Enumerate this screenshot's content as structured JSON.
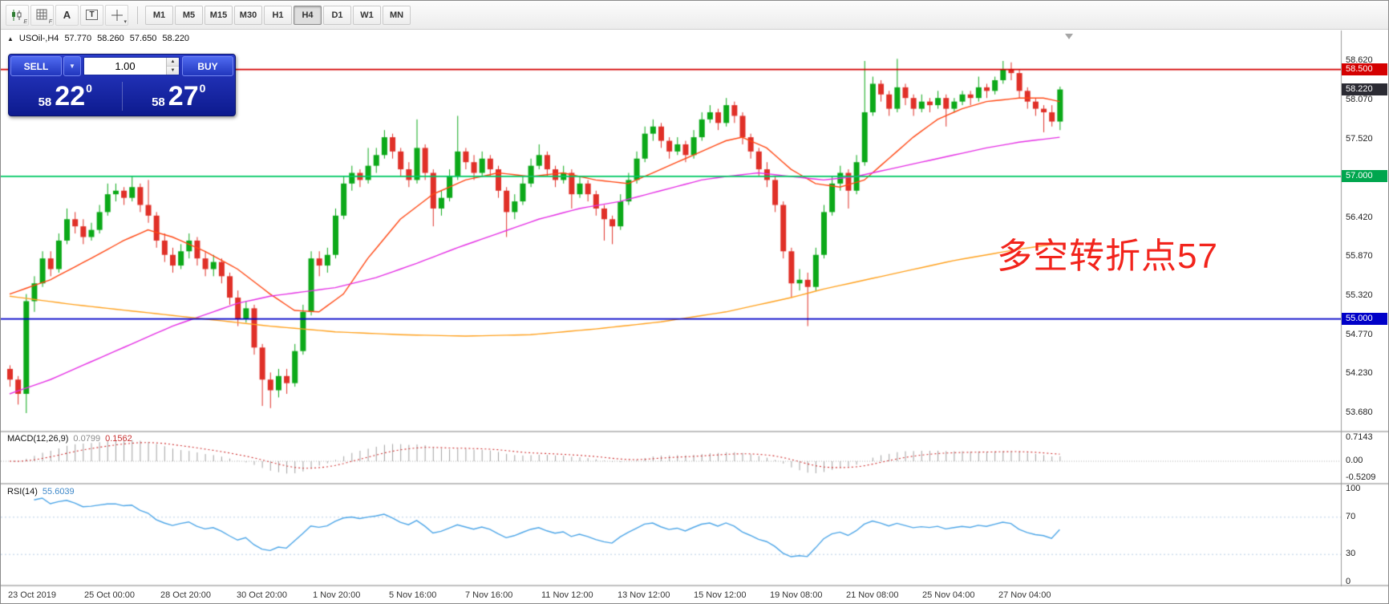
{
  "toolbar": {
    "icon_buttons": [
      {
        "name": "indicators-icon",
        "sub": "E"
      },
      {
        "name": "grid-icon",
        "sub": "F"
      },
      {
        "name": "text-tool-icon",
        "glyph": "A"
      },
      {
        "name": "label-tool-icon",
        "glyph": "T"
      },
      {
        "name": "cursor-tool-icon",
        "sub": "▾"
      }
    ],
    "timeframes": [
      {
        "label": "M1",
        "active": false
      },
      {
        "label": "M5",
        "active": false
      },
      {
        "label": "M15",
        "active": false
      },
      {
        "label": "M30",
        "active": false
      },
      {
        "label": "H1",
        "active": false
      },
      {
        "label": "H4",
        "active": true
      },
      {
        "label": "D1",
        "active": false
      },
      {
        "label": "W1",
        "active": false
      },
      {
        "label": "MN",
        "active": false
      }
    ]
  },
  "chart_header": {
    "expander": "▲",
    "symbol_period": "USOil-,H4",
    "open": "57.770",
    "high": "58.260",
    "low": "57.650",
    "close": "58.220"
  },
  "trade_panel": {
    "sell_label": "SELL",
    "buy_label": "BUY",
    "volume": "1.00",
    "dropdown_glyph": "▼",
    "spin_up": "▲",
    "spin_down": "▼",
    "sell_price_small": "58",
    "sell_price_big": "22",
    "sell_price_sup": "0",
    "buy_price_small": "58",
    "buy_price_big": "27",
    "buy_price_sup": "0"
  },
  "annotation": {
    "text": "多空转折点57",
    "color": "#f2241c"
  },
  "price_axis": {
    "ticks": [
      {
        "text": "58.620",
        "price": 58.62
      },
      {
        "text": "58.070",
        "price": 58.07
      },
      {
        "text": "57.520",
        "price": 57.52
      },
      {
        "text": "56.420",
        "price": 56.42
      },
      {
        "text": "55.870",
        "price": 55.87
      },
      {
        "text": "55.320",
        "price": 55.32
      },
      {
        "text": "54.770",
        "price": 54.77
      },
      {
        "text": "54.230",
        "price": 54.23
      },
      {
        "text": "53.680",
        "price": 53.68
      }
    ],
    "badges": [
      {
        "text": "58.500",
        "price": 58.5,
        "bg": "#d40000"
      },
      {
        "text": "58.220",
        "price": 58.22,
        "bg": "#2b2b33"
      },
      {
        "text": "57.000",
        "price": 57.0,
        "bg": "#00a64e"
      },
      {
        "text": "55.000",
        "price": 55.0,
        "bg": "#0000c8"
      }
    ]
  },
  "indicators": {
    "macd": {
      "label": "MACD(12,26,9)",
      "value_main": "0.0799",
      "value_signal": "0.1562",
      "axis": [
        {
          "text": "0.7143",
          "value": 0.7143
        },
        {
          "text": "0.00",
          "value": 0
        },
        {
          "text": "-0.5209",
          "value": -0.5209
        }
      ]
    },
    "rsi": {
      "label": "RSI(14)",
      "value": "55.6039",
      "axis": [
        {
          "text": "100",
          "value": 100
        },
        {
          "text": "70",
          "value": 70
        },
        {
          "text": "30",
          "value": 30
        },
        {
          "text": "0",
          "value": 0
        }
      ],
      "levels": [
        70,
        30
      ]
    }
  },
  "time_axis": [
    "23 Oct 2019",
    "25 Oct 00:00",
    "28 Oct 20:00",
    "30 Oct 20:00",
    "1 Nov 20:00",
    "5 Nov 16:00",
    "7 Nov 16:00",
    "11 Nov 12:00",
    "13 Nov 12:00",
    "15 Nov 12:00",
    "19 Nov 08:00",
    "21 Nov 08:00",
    "25 Nov 04:00",
    "27 Nov 04:00"
  ],
  "chart_data": {
    "type": "candlestick",
    "symbol": "USOil-",
    "timeframe": "H4",
    "y_axis_range": [
      53.68,
      58.62
    ],
    "hlines": [
      {
        "price": 58.5,
        "color": "#d40000"
      },
      {
        "price": 57.0,
        "color": "#00c864"
      },
      {
        "price": 55.0,
        "color": "#0000c8"
      }
    ],
    "ohlc": [
      [
        54.3,
        54.35,
        54.05,
        54.15
      ],
      [
        54.15,
        54.2,
        53.8,
        53.95
      ],
      [
        53.95,
        55.35,
        53.68,
        55.25
      ],
      [
        55.25,
        55.6,
        55.1,
        55.5
      ],
      [
        55.5,
        55.95,
        55.45,
        55.85
      ],
      [
        55.85,
        55.95,
        55.6,
        55.7
      ],
      [
        55.7,
        56.2,
        55.65,
        56.1
      ],
      [
        56.1,
        56.55,
        56.05,
        56.4
      ],
      [
        56.4,
        56.5,
        56.2,
        56.3
      ],
      [
        56.3,
        56.4,
        56.05,
        56.15
      ],
      [
        56.15,
        56.35,
        56.1,
        56.25
      ],
      [
        56.25,
        56.6,
        56.2,
        56.5
      ],
      [
        56.5,
        56.9,
        56.45,
        56.75
      ],
      [
        56.75,
        56.9,
        56.65,
        56.8
      ],
      [
        56.8,
        56.85,
        56.6,
        56.7
      ],
      [
        56.7,
        57.0,
        56.65,
        56.85
      ],
      [
        56.85,
        56.9,
        56.5,
        56.6
      ],
      [
        56.6,
        56.95,
        56.35,
        56.45
      ],
      [
        56.45,
        56.5,
        56.0,
        56.1
      ],
      [
        56.1,
        56.2,
        55.8,
        55.9
      ],
      [
        55.9,
        56.0,
        55.65,
        55.75
      ],
      [
        55.75,
        56.05,
        55.7,
        55.95
      ],
      [
        55.95,
        56.2,
        55.85,
        56.1
      ],
      [
        56.1,
        56.15,
        55.75,
        55.85
      ],
      [
        55.85,
        55.95,
        55.6,
        55.7
      ],
      [
        55.7,
        55.9,
        55.6,
        55.8
      ],
      [
        55.8,
        55.85,
        55.5,
        55.6
      ],
      [
        55.6,
        55.65,
        55.2,
        55.3
      ],
      [
        55.3,
        55.4,
        54.9,
        55.0
      ],
      [
        55.0,
        55.25,
        54.95,
        55.15
      ],
      [
        55.15,
        55.2,
        54.5,
        54.6
      ],
      [
        54.6,
        54.65,
        53.78,
        54.15
      ],
      [
        54.15,
        54.25,
        53.75,
        54.0
      ],
      [
        54.0,
        54.3,
        53.9,
        54.2
      ],
      [
        54.2,
        54.3,
        53.95,
        54.1
      ],
      [
        54.1,
        54.65,
        54.05,
        54.55
      ],
      [
        54.55,
        55.2,
        54.5,
        55.1
      ],
      [
        55.1,
        55.95,
        55.05,
        55.85
      ],
      [
        55.85,
        55.95,
        55.6,
        55.75
      ],
      [
        55.75,
        56.0,
        55.65,
        55.9
      ],
      [
        55.9,
        56.55,
        55.85,
        56.45
      ],
      [
        56.45,
        57.0,
        56.4,
        56.9
      ],
      [
        56.9,
        57.15,
        56.8,
        57.05
      ],
      [
        57.05,
        57.1,
        56.85,
        56.95
      ],
      [
        56.95,
        57.4,
        56.9,
        57.15
      ],
      [
        57.15,
        57.4,
        57.05,
        57.3
      ],
      [
        57.3,
        57.65,
        57.25,
        57.55
      ],
      [
        57.55,
        57.6,
        57.25,
        57.35
      ],
      [
        57.35,
        57.4,
        57.0,
        57.1
      ],
      [
        57.1,
        57.2,
        56.85,
        56.95
      ],
      [
        56.95,
        57.8,
        56.9,
        57.4
      ],
      [
        57.4,
        57.45,
        56.95,
        57.05
      ],
      [
        57.05,
        57.1,
        56.3,
        56.55
      ],
      [
        56.55,
        56.8,
        56.45,
        56.7
      ],
      [
        56.7,
        57.1,
        56.65,
        57.0
      ],
      [
        57.0,
        57.85,
        56.95,
        57.35
      ],
      [
        57.35,
        57.4,
        57.1,
        57.2
      ],
      [
        57.2,
        57.3,
        56.95,
        57.05
      ],
      [
        57.05,
        57.35,
        57.0,
        57.25
      ],
      [
        57.25,
        57.3,
        57.0,
        57.1
      ],
      [
        57.1,
        57.15,
        56.7,
        56.8
      ],
      [
        56.8,
        56.85,
        56.15,
        56.5
      ],
      [
        56.5,
        56.75,
        56.4,
        56.65
      ],
      [
        56.65,
        57.0,
        56.6,
        56.9
      ],
      [
        56.9,
        57.25,
        56.85,
        57.15
      ],
      [
        57.15,
        57.45,
        57.1,
        57.3
      ],
      [
        57.3,
        57.35,
        57.0,
        57.1
      ],
      [
        57.1,
        57.15,
        56.85,
        56.95
      ],
      [
        56.95,
        57.15,
        56.9,
        57.05
      ],
      [
        57.05,
        57.1,
        56.55,
        56.75
      ],
      [
        56.75,
        57.0,
        56.7,
        56.9
      ],
      [
        56.9,
        56.95,
        56.65,
        56.75
      ],
      [
        56.75,
        56.8,
        56.45,
        56.55
      ],
      [
        56.55,
        56.6,
        56.1,
        56.4
      ],
      [
        56.4,
        56.45,
        56.05,
        56.3
      ],
      [
        56.3,
        56.75,
        56.25,
        56.65
      ],
      [
        56.65,
        57.05,
        56.6,
        56.95
      ],
      [
        56.95,
        57.35,
        56.9,
        57.25
      ],
      [
        57.25,
        57.7,
        57.2,
        57.6
      ],
      [
        57.6,
        57.8,
        57.5,
        57.7
      ],
      [
        57.7,
        57.75,
        57.4,
        57.5
      ],
      [
        57.5,
        57.55,
        57.25,
        57.35
      ],
      [
        57.35,
        57.55,
        57.3,
        57.45
      ],
      [
        57.45,
        57.5,
        57.2,
        57.3
      ],
      [
        57.3,
        57.65,
        57.25,
        57.55
      ],
      [
        57.55,
        57.9,
        57.5,
        57.8
      ],
      [
        57.8,
        58.0,
        57.75,
        57.9
      ],
      [
        57.9,
        57.95,
        57.65,
        57.75
      ],
      [
        57.75,
        58.1,
        57.7,
        58.0
      ],
      [
        58.0,
        58.05,
        57.75,
        57.85
      ],
      [
        57.85,
        57.9,
        57.45,
        57.55
      ],
      [
        57.55,
        57.6,
        57.25,
        57.35
      ],
      [
        57.35,
        57.4,
        57.0,
        57.1
      ],
      [
        57.1,
        57.2,
        56.85,
        56.95
      ],
      [
        56.95,
        57.0,
        56.5,
        56.6
      ],
      [
        56.6,
        56.65,
        55.85,
        55.95
      ],
      [
        55.95,
        56.0,
        55.3,
        55.5
      ],
      [
        55.5,
        55.7,
        55.4,
        55.55
      ],
      [
        55.55,
        55.65,
        54.9,
        55.45
      ],
      [
        55.45,
        56.0,
        55.4,
        55.9
      ],
      [
        55.9,
        56.6,
        55.85,
        56.5
      ],
      [
        56.5,
        57.0,
        56.45,
        56.9
      ],
      [
        56.9,
        57.15,
        56.8,
        57.05
      ],
      [
        57.05,
        57.1,
        56.55,
        56.8
      ],
      [
        56.8,
        57.3,
        56.75,
        57.2
      ],
      [
        57.2,
        58.62,
        57.15,
        57.9
      ],
      [
        57.9,
        58.4,
        57.85,
        58.3
      ],
      [
        58.3,
        58.35,
        58.05,
        58.15
      ],
      [
        58.15,
        58.2,
        57.85,
        57.95
      ],
      [
        57.95,
        58.65,
        57.9,
        58.25
      ],
      [
        58.25,
        58.3,
        58.0,
        58.1
      ],
      [
        58.1,
        58.15,
        57.85,
        57.95
      ],
      [
        57.95,
        58.15,
        57.9,
        58.05
      ],
      [
        58.05,
        58.1,
        57.9,
        58.0
      ],
      [
        58.0,
        58.2,
        57.95,
        58.1
      ],
      [
        58.1,
        58.15,
        57.7,
        57.95
      ],
      [
        57.95,
        58.1,
        57.9,
        58.05
      ],
      [
        58.05,
        58.2,
        58.0,
        58.15
      ],
      [
        58.15,
        58.2,
        58.0,
        58.1
      ],
      [
        58.1,
        58.4,
        58.05,
        58.25
      ],
      [
        58.25,
        58.3,
        58.1,
        58.2
      ],
      [
        58.2,
        58.4,
        58.15,
        58.35
      ],
      [
        58.35,
        58.62,
        58.3,
        58.5
      ],
      [
        58.5,
        58.6,
        58.35,
        58.45
      ],
      [
        58.45,
        58.5,
        58.1,
        58.2
      ],
      [
        58.2,
        58.25,
        57.95,
        58.05
      ],
      [
        58.05,
        58.1,
        57.85,
        57.95
      ],
      [
        57.95,
        58.0,
        57.62,
        57.9
      ],
      [
        57.9,
        58.0,
        57.7,
        57.77
      ],
      [
        57.77,
        58.26,
        57.65,
        58.22
      ]
    ],
    "moving_averages": [
      {
        "name": "fast",
        "color": "#ff4814",
        "points": [
          [
            0,
            55.35
          ],
          [
            5,
            55.55
          ],
          [
            10,
            55.85
          ],
          [
            14,
            56.1
          ],
          [
            17,
            56.25
          ],
          [
            20,
            56.15
          ],
          [
            24,
            55.95
          ],
          [
            28,
            55.7
          ],
          [
            32,
            55.35
          ],
          [
            35,
            55.12
          ],
          [
            38,
            55.1
          ],
          [
            41,
            55.35
          ],
          [
            44,
            55.85
          ],
          [
            48,
            56.4
          ],
          [
            52,
            56.75
          ],
          [
            56,
            56.95
          ],
          [
            60,
            57.05
          ],
          [
            64,
            57.0
          ],
          [
            68,
            57.05
          ],
          [
            72,
            56.95
          ],
          [
            76,
            56.9
          ],
          [
            80,
            57.1
          ],
          [
            84,
            57.3
          ],
          [
            88,
            57.5
          ],
          [
            90,
            57.55
          ],
          [
            93,
            57.4
          ],
          [
            96,
            57.1
          ],
          [
            99,
            56.9
          ],
          [
            102,
            56.85
          ],
          [
            105,
            56.95
          ],
          [
            108,
            57.25
          ],
          [
            111,
            57.55
          ],
          [
            114,
            57.8
          ],
          [
            117,
            57.95
          ],
          [
            120,
            58.05
          ],
          [
            124,
            58.1
          ],
          [
            127,
            58.1
          ],
          [
            129,
            58.05
          ]
        ]
      },
      {
        "name": "mid",
        "color": "#e530e5",
        "points": [
          [
            0,
            53.95
          ],
          [
            5,
            54.15
          ],
          [
            10,
            54.4
          ],
          [
            15,
            54.65
          ],
          [
            20,
            54.9
          ],
          [
            25,
            55.1
          ],
          [
            28,
            55.22
          ],
          [
            32,
            55.32
          ],
          [
            36,
            55.38
          ],
          [
            40,
            55.44
          ],
          [
            45,
            55.58
          ],
          [
            50,
            55.78
          ],
          [
            55,
            56.0
          ],
          [
            60,
            56.2
          ],
          [
            65,
            56.4
          ],
          [
            70,
            56.55
          ],
          [
            75,
            56.65
          ],
          [
            80,
            56.8
          ],
          [
            85,
            56.95
          ],
          [
            88,
            57.0
          ],
          [
            92,
            57.05
          ],
          [
            96,
            57.0
          ],
          [
            100,
            56.95
          ],
          [
            104,
            57.0
          ],
          [
            108,
            57.1
          ],
          [
            112,
            57.2
          ],
          [
            116,
            57.3
          ],
          [
            120,
            57.4
          ],
          [
            124,
            57.48
          ],
          [
            129,
            57.55
          ]
        ]
      },
      {
        "name": "slow",
        "color": "#ffa21f",
        "points": [
          [
            0,
            55.32
          ],
          [
            8,
            55.2
          ],
          [
            16,
            55.1
          ],
          [
            24,
            55.0
          ],
          [
            32,
            54.9
          ],
          [
            40,
            54.82
          ],
          [
            48,
            54.78
          ],
          [
            56,
            54.76
          ],
          [
            64,
            54.78
          ],
          [
            72,
            54.86
          ],
          [
            80,
            54.96
          ],
          [
            88,
            55.1
          ],
          [
            92,
            55.2
          ],
          [
            96,
            55.3
          ],
          [
            100,
            55.42
          ],
          [
            104,
            55.52
          ],
          [
            108,
            55.62
          ],
          [
            112,
            55.72
          ],
          [
            116,
            55.82
          ],
          [
            120,
            55.9
          ],
          [
            124,
            55.98
          ],
          [
            129,
            56.06
          ]
        ]
      }
    ]
  },
  "colors": {
    "bull": "#0ca919",
    "bear": "#e03028",
    "macd_hist": "#a2a2a2",
    "macd_signal": "#d03030",
    "rsi_line": "#4da6e8",
    "rsi_level": "#b9cfe6",
    "divider": "#c0c0c0",
    "axis_separator": "#9a9a9a"
  }
}
